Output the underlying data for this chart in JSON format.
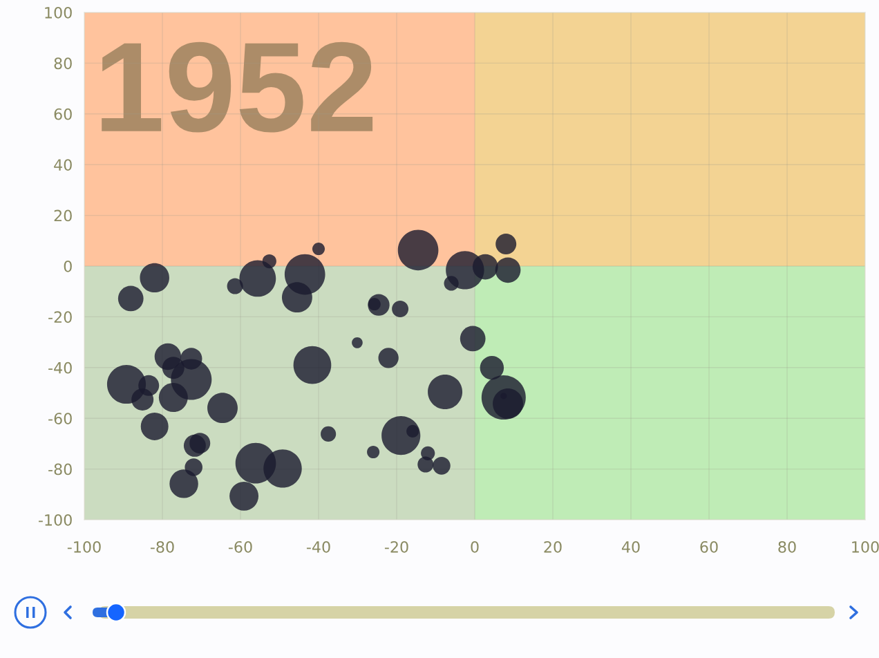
{
  "chart_data": {
    "type": "bubble",
    "annotations": [
      "1952"
    ],
    "x": [
      -88.1,
      -82.0,
      -78.6,
      -72.6,
      -77.2,
      -72.6,
      -89.2,
      -83.5,
      -85.1,
      -77.2,
      -64.6,
      -82.0,
      -71.7,
      -70.4,
      -72.0,
      -74.5,
      -56.1,
      -49.2,
      -59.1,
      -52.6,
      -55.6,
      -61.4,
      -43.5,
      -45.5,
      -40.0,
      -14.5,
      -2.5,
      -6.0,
      2.7,
      8.0,
      8.5,
      -24.6,
      -25.7,
      -19.1,
      -30.1,
      -22.1,
      -41.6,
      -0.5,
      4.4,
      -7.6,
      7.4,
      8.5,
      7.4,
      -18.9,
      -15.9,
      -37.5,
      -26.0,
      -12.0,
      -12.6,
      -8.5
    ],
    "values": [
      -12.8,
      -4.6,
      -35.7,
      -36.5,
      -40.1,
      -44.7,
      -46.6,
      -47.1,
      -52.6,
      -51.8,
      -55.9,
      -63.2,
      -70.8,
      -69.8,
      -79.3,
      -85.8,
      -77.7,
      -79.8,
      -90.7,
      1.9,
      -4.9,
      -7.9,
      -3.3,
      -12.3,
      6.8,
      6.3,
      -1.6,
      -6.8,
      -0.3,
      8.7,
      -1.6,
      -15.3,
      -15.0,
      -16.9,
      -30.2,
      -36.2,
      -39.0,
      -28.6,
      -40.1,
      -49.6,
      -51.8,
      -54.2,
      -51.2,
      -66.8,
      -65.1,
      -66.2,
      -73.3,
      -73.8,
      -78.2,
      -78.7
    ],
    "sizes": [
      0.33,
      0.44,
      0.36,
      0.24,
      0.25,
      0.85,
      0.77,
      0.22,
      0.25,
      0.43,
      0.47,
      0.39,
      0.25,
      0.22,
      0.16,
      0.42,
      0.84,
      0.75,
      0.43,
      0.1,
      0.68,
      0.13,
      0.84,
      0.47,
      0.08,
      0.84,
      0.75,
      0.11,
      0.33,
      0.22,
      0.33,
      0.24,
      0.08,
      0.14,
      0.06,
      0.21,
      0.73,
      0.33,
      0.29,
      0.61,
      1,
      0.47,
      0.02,
      0.77,
      0.08,
      0.12,
      0.08,
      0.1,
      0.13,
      0.16
    ],
    "color": "#1a1a2e",
    "xlim": [
      -100,
      100
    ],
    "ylim": [
      -100,
      100
    ],
    "xticks": [
      -100,
      -80,
      -60,
      -40,
      -20,
      0,
      20,
      40,
      60,
      80,
      100
    ],
    "yticks": [
      -100,
      -80,
      -60,
      -40,
      -20,
      0,
      20,
      40,
      60,
      80,
      100
    ],
    "grid": true,
    "bands": [
      {
        "axis": "y",
        "from": 0,
        "to": 100,
        "color": "#ffbe86"
      },
      {
        "axis": "y",
        "from": -100,
        "to": 0,
        "color": "#97f1cd"
      },
      {
        "axis": "x",
        "from": -100,
        "to": 0,
        "color": "#ffc8b3"
      },
      {
        "axis": "x",
        "from": 0,
        "to": 100,
        "color": "#e7e7a0"
      }
    ]
  }
}
